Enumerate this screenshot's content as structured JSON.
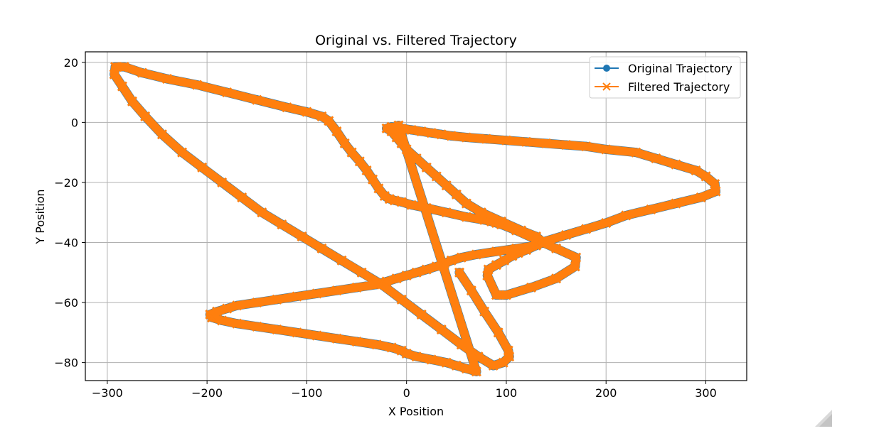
{
  "chart_data": {
    "type": "line",
    "title": "Original vs. Filtered Trajectory",
    "xlabel": "X Position",
    "ylabel": "Y Position",
    "xlim": [
      -322,
      341
    ],
    "ylim": [
      -86,
      23.5
    ],
    "xticks": [
      -300,
      -200,
      -100,
      0,
      100,
      200,
      300
    ],
    "yticks": [
      20,
      0,
      -20,
      -40,
      -60,
      -80
    ],
    "xtick_labels": [
      "−300",
      "−200",
      "−100",
      "0",
      "100",
      "200",
      "300"
    ],
    "ytick_labels": [
      "20",
      "0",
      "−20",
      "−40",
      "−60",
      "−80"
    ],
    "grid": true,
    "legend_position": "upper right",
    "series": [
      {
        "name": "Original Trajectory",
        "color": "#1f77b4",
        "marker": "circle",
        "x": [
          53,
          65,
          78,
          92,
          102,
          103,
          97,
          87,
          72,
          55,
          35,
          15,
          -5,
          -25,
          -45,
          -65,
          -85,
          -105,
          -125,
          -145,
          -165,
          -185,
          -205,
          -225,
          -245,
          -262,
          -275,
          -285,
          -293,
          -292,
          -283,
          -265,
          -240,
          -210,
          -180,
          -150,
          -120,
          -100,
          -85,
          -78,
          -70,
          -62,
          -55,
          -47,
          -40,
          -34,
          -28,
          -22,
          -17,
          -12,
          -5,
          5,
          20,
          40,
          60,
          78,
          85,
          90,
          95,
          110,
          130,
          150,
          170,
          169,
          150,
          125,
          100,
          90,
          81,
          82,
          90,
          98,
          106,
          112,
          120,
          130,
          140,
          160,
          180,
          200,
          220,
          245,
          270,
          295,
          310,
          309,
          300,
          290,
          270,
          250,
          230,
          200,
          180,
          160,
          140,
          120,
          100,
          80,
          60,
          45,
          35,
          25,
          15,
          5,
          -5,
          -15,
          -20,
          -15,
          -10,
          -5,
          0,
          10,
          20,
          30,
          40,
          50,
          60,
          75,
          95,
          115,
          130,
          137,
          130,
          110,
          90,
          70,
          55,
          45,
          38,
          30,
          20,
          10,
          0,
          -10,
          -20,
          -30,
          -50,
          -70,
          -90,
          -110,
          -130,
          -150,
          -170,
          -180,
          -190,
          -197,
          -195,
          -185,
          -170,
          -150,
          -130,
          -110,
          -90,
          -70,
          -50,
          -30,
          -15,
          -5,
          0,
          10,
          25,
          40,
          50,
          60,
          70,
          -8
        ],
        "y": [
          -50,
          -56,
          -63,
          -70,
          -76,
          -78,
          -80,
          -81,
          -78,
          -74,
          -69,
          -64,
          -59,
          -54,
          -50,
          -46,
          -42,
          -38,
          -34,
          -30,
          -25,
          -20,
          -15,
          -10,
          -4,
          2,
          7,
          12,
          16,
          18.5,
          18.5,
          16.5,
          14.5,
          12.5,
          10,
          7.5,
          5,
          3.5,
          2,
          0.5,
          -3,
          -7,
          -10,
          -13,
          -16,
          -19,
          -22,
          -24.5,
          -25.5,
          -26,
          -26.5,
          -27.5,
          -28.5,
          -30,
          -31.5,
          -32.5,
          -33,
          -33.5,
          -34,
          -36,
          -39,
          -42,
          -45,
          -48,
          -52,
          -55,
          -57.5,
          -57.5,
          -51,
          -49,
          -47.5,
          -46,
          -44.5,
          -43.5,
          -42.5,
          -41,
          -39.5,
          -37.5,
          -35.5,
          -33.5,
          -31,
          -29,
          -27,
          -25,
          -23,
          -20.5,
          -18,
          -16,
          -14,
          -12,
          -10,
          -9,
          -8,
          -7.5,
          -7,
          -6.5,
          -6,
          -5.5,
          -5,
          -4.5,
          -4,
          -3.5,
          -3,
          -2.5,
          -2,
          -1.5,
          -2,
          -3,
          -5,
          -7,
          -9,
          -12,
          -15,
          -18,
          -21,
          -24,
          -27,
          -30,
          -33,
          -36,
          -38,
          -40,
          -41,
          -42,
          -43,
          -44,
          -45,
          -46,
          -47,
          -48,
          -49,
          -50,
          -51,
          -52,
          -53,
          -54,
          -55,
          -56,
          -57,
          -58,
          -59,
          -60,
          -61,
          -62,
          -63,
          -64,
          -65,
          -66,
          -67,
          -68,
          -69,
          -70,
          -71,
          -72,
          -73,
          -74,
          -75,
          -76,
          -77,
          -78,
          -79,
          -80,
          -81,
          -82,
          -83,
          -1
        ]
      },
      {
        "name": "Filtered Trajectory",
        "color": "#ff7f0e",
        "marker": "x",
        "x": [],
        "y": []
      }
    ]
  }
}
